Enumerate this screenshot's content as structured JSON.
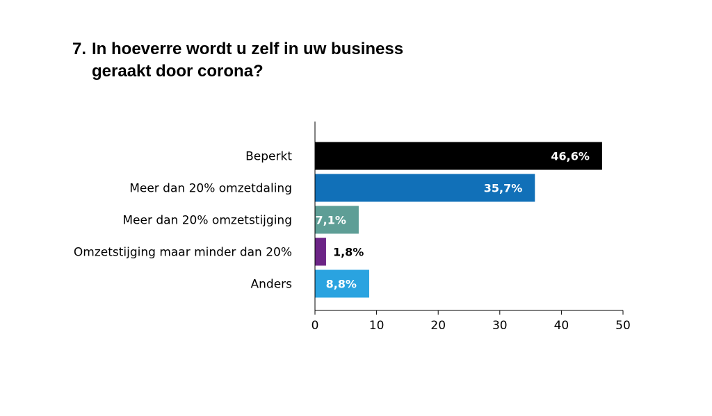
{
  "header": {
    "number": "7.",
    "title_line1": "In hoeverre wordt u zelf in uw business",
    "title_line2": "geraakt door corona?"
  },
  "chart_data": {
    "type": "bar",
    "orientation": "horizontal",
    "categories": [
      "Beperkt",
      "Meer dan 20% omzetdaling",
      "Meer dan 20% omzetstijging",
      "Omzetstijging maar minder dan 20%",
      "Anders"
    ],
    "values": [
      46.6,
      35.7,
      7.1,
      1.8,
      8.8
    ],
    "value_labels": [
      "46,6%",
      "35,7%",
      "7,1%",
      "1,8%",
      "8,8%"
    ],
    "colors": [
      "#000000",
      "#1170b8",
      "#5e9e96",
      "#6c2486",
      "#2aa3e0"
    ],
    "label_colors": [
      "#ffffff",
      "#ffffff",
      "#ffffff",
      "#000000",
      "#ffffff"
    ],
    "label_inside": [
      true,
      true,
      true,
      false,
      true
    ],
    "xlim": [
      0,
      50
    ],
    "xticks": [
      "0",
      "10",
      "20",
      "30",
      "40",
      "50"
    ],
    "grid": false
  }
}
